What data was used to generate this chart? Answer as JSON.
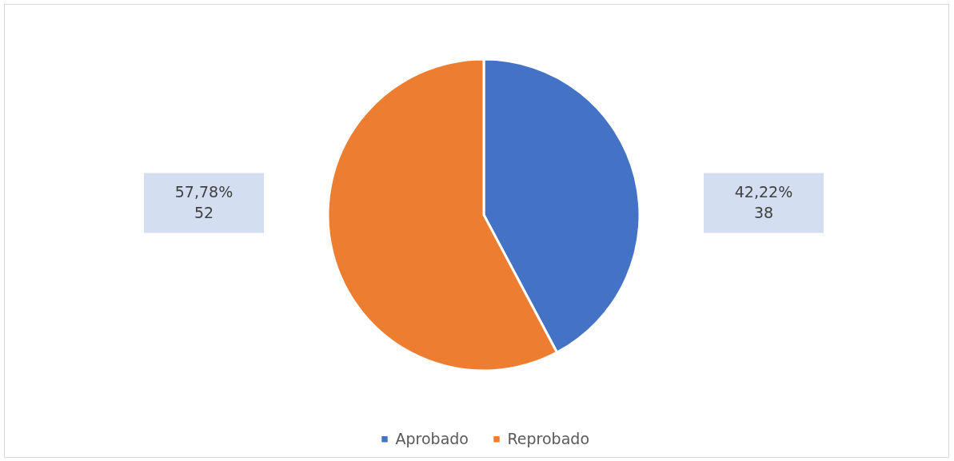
{
  "chart_data": {
    "type": "pie",
    "categories": [
      "Aprobado",
      "Reprobado"
    ],
    "values": [
      38,
      52
    ],
    "colors": [
      "#4472c4",
      "#ed7d31"
    ],
    "value_labels": [
      "42,22%\n38",
      "57,78%\n52"
    ],
    "legend": "bottom"
  }
}
